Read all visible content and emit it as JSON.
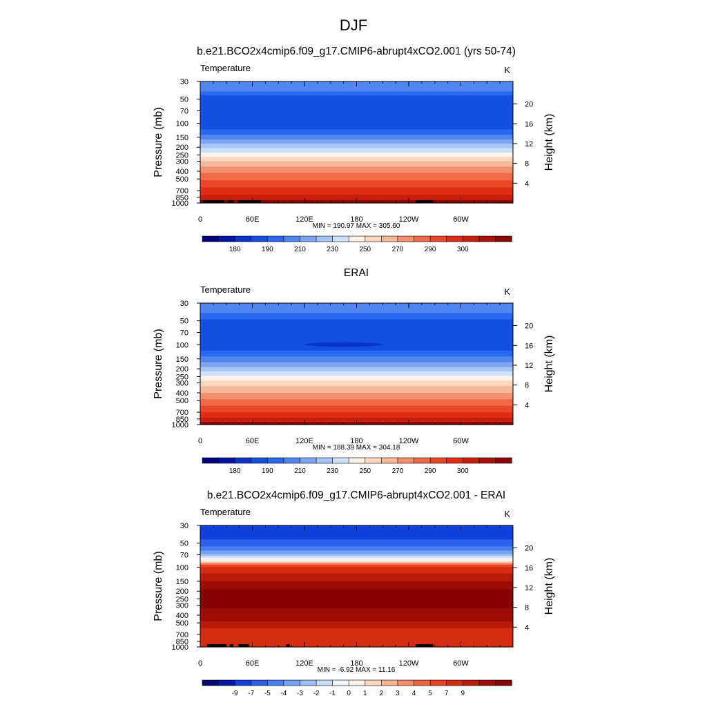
{
  "figure": {
    "title": "DJF"
  },
  "colors": {
    "temperature_scale": [
      "#00007a",
      "#0014a8",
      "#0a32cc",
      "#1450e0",
      "#2a68f0",
      "#5086f0",
      "#7ea4f2",
      "#a6c4f6",
      "#cfe0fa",
      "#fff4ea",
      "#fcd8c2",
      "#f8b89a",
      "#f49070",
      "#f06a48",
      "#ea4628",
      "#e02c14",
      "#c81e0c",
      "#a81206",
      "#8a0400"
    ],
    "difference_scale": [
      "#000a6e",
      "#0018aa",
      "#1040dc",
      "#2c60ec",
      "#4880f2",
      "#74a0f4",
      "#9cbef6",
      "#c8dcf8",
      "#eef4fc",
      "#fff4ea",
      "#fcd6be",
      "#f8b492",
      "#f48c66",
      "#ee6440",
      "#e84020",
      "#d42c10",
      "#b81c08",
      "#9c0c02",
      "#860000"
    ]
  },
  "chart_data": [
    {
      "type": "heatmap",
      "title": "b.e21.BCO2x4cmip6.f09_g17.CMIP6-abrupt4xCO2.001 (yrs 50-74)",
      "left_label": "Temperature",
      "right_label": "K",
      "ylabel": "Pressure (mb)",
      "y2label": "Height (km)",
      "x_ticks": [
        "0",
        "60E",
        "120E",
        "180",
        "120W",
        "60W"
      ],
      "x_tick_lon": [
        0,
        60,
        120,
        180,
        240,
        300
      ],
      "xlim": [
        0,
        360
      ],
      "y_ticks": [
        "30",
        "50",
        "70",
        "100",
        "150",
        "200",
        "250",
        "300",
        "400",
        "500",
        "700",
        "850",
        "1000"
      ],
      "y_tick_p": [
        30,
        50,
        70,
        100,
        150,
        200,
        250,
        300,
        400,
        500,
        700,
        850,
        1000
      ],
      "ylim": [
        30,
        1000
      ],
      "yscale": "log",
      "y2_ticks": [
        "20",
        "16",
        "12",
        "8",
        "4"
      ],
      "y2_tick_km": [
        20,
        16,
        12,
        8,
        4
      ],
      "stats_text": "MIN = 190.97  MAX = 305.60",
      "colorbar_labels": [
        "180",
        "190",
        "210",
        "230",
        "250",
        "270",
        "290",
        "300"
      ],
      "colorbar_label_index": [
        1,
        3,
        5,
        7,
        9,
        11,
        13,
        15
      ],
      "band_index_by_level": [
        [
          30,
          5
        ],
        [
          40,
          4
        ],
        [
          45,
          3
        ],
        [
          100,
          3
        ],
        [
          120,
          4
        ],
        [
          140,
          5
        ],
        [
          160,
          6
        ],
        [
          180,
          7
        ],
        [
          205,
          8
        ],
        [
          235,
          9
        ],
        [
          265,
          10
        ],
        [
          300,
          11
        ],
        [
          350,
          12
        ],
        [
          420,
          13
        ],
        [
          520,
          14
        ],
        [
          640,
          15
        ],
        [
          790,
          16
        ],
        [
          920,
          17
        ],
        [
          1000,
          18
        ]
      ],
      "topography_lon": [
        [
          3,
          28
        ],
        [
          32,
          38
        ],
        [
          44,
          70
        ],
        [
          248,
          268
        ]
      ]
    },
    {
      "type": "heatmap",
      "title": "ERAI",
      "left_label": "Temperature",
      "right_label": "K",
      "ylabel": "Pressure (mb)",
      "y2label": "Height (km)",
      "x_ticks": [
        "0",
        "60E",
        "120E",
        "180",
        "120W",
        "60W"
      ],
      "x_tick_lon": [
        0,
        60,
        120,
        180,
        240,
        300
      ],
      "xlim": [
        0,
        360
      ],
      "y_ticks": [
        "30",
        "50",
        "70",
        "100",
        "150",
        "200",
        "250",
        "300",
        "400",
        "500",
        "700",
        "850",
        "1000"
      ],
      "y_tick_p": [
        30,
        50,
        70,
        100,
        150,
        200,
        250,
        300,
        400,
        500,
        700,
        850,
        1000
      ],
      "ylim": [
        30,
        1000
      ],
      "yscale": "log",
      "y2_ticks": [
        "20",
        "16",
        "12",
        "8",
        "4"
      ],
      "y2_tick_km": [
        20,
        16,
        12,
        8,
        4
      ],
      "stats_text": "MIN = 188.39  MAX = 304.18",
      "colorbar_labels": [
        "180",
        "190",
        "210",
        "230",
        "250",
        "270",
        "290",
        "300"
      ],
      "colorbar_label_index": [
        1,
        3,
        5,
        7,
        9,
        11,
        13,
        15
      ],
      "band_index_by_level": [
        [
          30,
          5
        ],
        [
          40,
          4
        ],
        [
          48,
          3
        ],
        [
          100,
          3
        ],
        [
          118,
          4
        ],
        [
          140,
          5
        ],
        [
          165,
          6
        ],
        [
          190,
          7
        ],
        [
          215,
          8
        ],
        [
          245,
          9
        ],
        [
          280,
          10
        ],
        [
          330,
          11
        ],
        [
          400,
          12
        ],
        [
          480,
          13
        ],
        [
          580,
          14
        ],
        [
          700,
          15
        ],
        [
          820,
          16
        ],
        [
          930,
          17
        ],
        [
          1000,
          18
        ]
      ],
      "cold_core_lon": [
        120,
        210
      ],
      "cold_core_p": [
        93,
        106
      ]
    },
    {
      "type": "heatmap",
      "title": "b.e21.BCO2x4cmip6.f09_g17.CMIP6-abrupt4xCO2.001 - ERAI",
      "left_label": "Temperature",
      "right_label": "K",
      "ylabel": "Pressure (mb)",
      "y2label": "Height (km)",
      "x_ticks": [
        "0",
        "60E",
        "120E",
        "180",
        "120W",
        "60W"
      ],
      "x_tick_lon": [
        0,
        60,
        120,
        180,
        240,
        300
      ],
      "xlim": [
        0,
        360
      ],
      "y_ticks": [
        "30",
        "50",
        "70",
        "100",
        "150",
        "200",
        "250",
        "300",
        "400",
        "500",
        "700",
        "850",
        "1000"
      ],
      "y_tick_p": [
        30,
        50,
        70,
        100,
        150,
        200,
        250,
        300,
        400,
        500,
        700,
        850,
        1000
      ],
      "ylim": [
        30,
        1000
      ],
      "yscale": "log",
      "y2_ticks": [
        "20",
        "16",
        "12",
        "8",
        "4"
      ],
      "y2_tick_km": [
        20,
        16,
        12,
        8,
        4
      ],
      "stats_text": "MIN = -6.92  MAX = 11.16",
      "colorbar_labels": [
        "-9",
        "-7",
        "-5",
        "-4",
        "-3",
        "-2",
        "-1",
        "0",
        "1",
        "2",
        "3",
        "4",
        "5",
        "7",
        "9"
      ],
      "colorbar_label_index": [
        1,
        2,
        3,
        4,
        5,
        6,
        7,
        8,
        9,
        10,
        11,
        12,
        13,
        14,
        15
      ],
      "band_index_by_level": [
        [
          30,
          2
        ],
        [
          45,
          3
        ],
        [
          55,
          4
        ],
        [
          62,
          5
        ],
        [
          68,
          6
        ],
        [
          72,
          7
        ],
        [
          76,
          8
        ],
        [
          80,
          9
        ],
        [
          84,
          10
        ],
        [
          88,
          12
        ],
        [
          93,
          14
        ],
        [
          100,
          15
        ],
        [
          120,
          16
        ],
        [
          150,
          17
        ],
        [
          190,
          18
        ],
        [
          330,
          17
        ],
        [
          480,
          16
        ],
        [
          580,
          15
        ],
        [
          1000,
          15
        ]
      ],
      "topography_lon": [
        [
          8,
          30
        ],
        [
          34,
          38
        ],
        [
          44,
          56
        ],
        [
          99,
          103
        ],
        [
          248,
          268
        ]
      ]
    }
  ]
}
